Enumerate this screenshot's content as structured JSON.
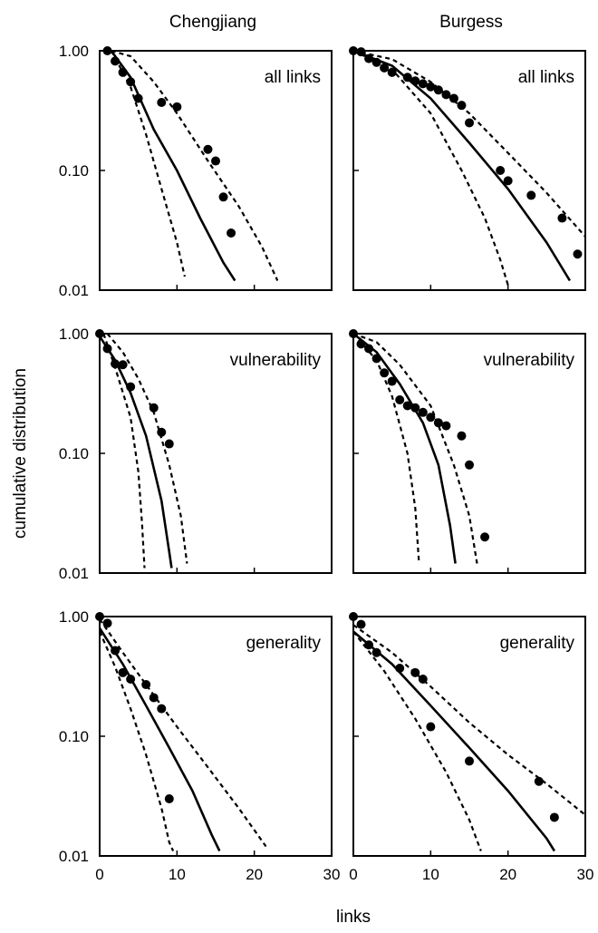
{
  "figure": {
    "column_titles": [
      "Chengjiang",
      "Burgess"
    ],
    "ylabel": "cumulative distribution",
    "xlabel": "links"
  },
  "chart_data": [
    {
      "type": "scatter",
      "label": "all links",
      "column": "Chengjiang",
      "xlim": [
        0,
        30
      ],
      "ylim": [
        0.01,
        1.0
      ],
      "yscale": "log",
      "yticks": [
        "1.00",
        "0.10",
        "0.01"
      ],
      "xticks": [],
      "points": [
        [
          1,
          1.0
        ],
        [
          2,
          0.82
        ],
        [
          3,
          0.66
        ],
        [
          4,
          0.55
        ],
        [
          5,
          0.4
        ],
        [
          8,
          0.37
        ],
        [
          10,
          0.34
        ],
        [
          14,
          0.15
        ],
        [
          15,
          0.12
        ],
        [
          16,
          0.06
        ],
        [
          17,
          0.03
        ]
      ],
      "model_line": [
        [
          1.5,
          1.0
        ],
        [
          4,
          0.6
        ],
        [
          7,
          0.22
        ],
        [
          10,
          0.1
        ],
        [
          13,
          0.04
        ],
        [
          16,
          0.017
        ],
        [
          17.5,
          0.012
        ]
      ],
      "lower_dashed": [
        [
          1.5,
          1.0
        ],
        [
          4,
          0.5
        ],
        [
          6,
          0.2
        ],
        [
          8,
          0.07
        ],
        [
          10,
          0.025
        ],
        [
          11,
          0.013
        ]
      ],
      "upper_dashed": [
        [
          1.5,
          1.0
        ],
        [
          4,
          0.9
        ],
        [
          7,
          0.55
        ],
        [
          10,
          0.3
        ],
        [
          14,
          0.12
        ],
        [
          18,
          0.05
        ],
        [
          21,
          0.023
        ],
        [
          23,
          0.012
        ]
      ]
    },
    {
      "type": "scatter",
      "label": "all links",
      "column": "Burgess",
      "xlim": [
        0,
        30
      ],
      "ylim": [
        0.01,
        1.0
      ],
      "yscale": "log",
      "yticks": [],
      "xticks": [],
      "points": [
        [
          0,
          1.0
        ],
        [
          1,
          0.98
        ],
        [
          2,
          0.86
        ],
        [
          3,
          0.8
        ],
        [
          4,
          0.72
        ],
        [
          5,
          0.66
        ],
        [
          7,
          0.6
        ],
        [
          8,
          0.56
        ],
        [
          9,
          0.53
        ],
        [
          10,
          0.5
        ],
        [
          11,
          0.47
        ],
        [
          12,
          0.43
        ],
        [
          13,
          0.4
        ],
        [
          14,
          0.35
        ],
        [
          15,
          0.25
        ],
        [
          19,
          0.1
        ],
        [
          20,
          0.082
        ],
        [
          23,
          0.062
        ],
        [
          27,
          0.04
        ],
        [
          29,
          0.02
        ]
      ],
      "model_line": [
        [
          0,
          1.0
        ],
        [
          5,
          0.75
        ],
        [
          10,
          0.4
        ],
        [
          15,
          0.17
        ],
        [
          20,
          0.07
        ],
        [
          25,
          0.025
        ],
        [
          28,
          0.012
        ]
      ],
      "lower_dashed": [
        [
          0,
          1.0
        ],
        [
          5,
          0.7
        ],
        [
          10,
          0.3
        ],
        [
          14,
          0.1
        ],
        [
          17,
          0.04
        ],
        [
          19,
          0.018
        ],
        [
          20,
          0.011
        ]
      ],
      "upper_dashed": [
        [
          0,
          1.0
        ],
        [
          5,
          0.85
        ],
        [
          10,
          0.55
        ],
        [
          15,
          0.3
        ],
        [
          20,
          0.14
        ],
        [
          25,
          0.065
        ],
        [
          30,
          0.028
        ]
      ]
    },
    {
      "type": "scatter",
      "label": "vulnerability",
      "column": "Chengjiang",
      "xlim": [
        0,
        30
      ],
      "ylim": [
        0.01,
        1.0
      ],
      "yscale": "log",
      "yticks": [
        "1.00",
        "0.10",
        "0.01"
      ],
      "xticks": [],
      "points": [
        [
          0,
          1.0
        ],
        [
          1,
          0.75
        ],
        [
          2,
          0.56
        ],
        [
          3,
          0.55
        ],
        [
          4,
          0.36
        ],
        [
          7,
          0.24
        ],
        [
          8,
          0.15
        ],
        [
          9,
          0.12
        ]
      ],
      "model_line": [
        [
          0,
          0.95
        ],
        [
          2,
          0.6
        ],
        [
          4,
          0.32
        ],
        [
          6,
          0.14
        ],
        [
          8,
          0.04
        ],
        [
          9,
          0.015
        ],
        [
          9.3,
          0.011
        ]
      ],
      "lower_dashed": [
        [
          0.5,
          1.0
        ],
        [
          2,
          0.52
        ],
        [
          4,
          0.2
        ],
        [
          5,
          0.07
        ],
        [
          5.5,
          0.025
        ],
        [
          5.8,
          0.011
        ]
      ],
      "upper_dashed": [
        [
          1,
          1.0
        ],
        [
          3,
          0.7
        ],
        [
          5,
          0.42
        ],
        [
          7,
          0.22
        ],
        [
          9,
          0.08
        ],
        [
          10.5,
          0.03
        ],
        [
          11.3,
          0.012
        ]
      ]
    },
    {
      "type": "scatter",
      "label": "vulnerability",
      "column": "Burgess",
      "xlim": [
        0,
        30
      ],
      "ylim": [
        0.01,
        1.0
      ],
      "yscale": "log",
      "yticks": [],
      "xticks": [],
      "points": [
        [
          0,
          1.0
        ],
        [
          1,
          0.82
        ],
        [
          2,
          0.75
        ],
        [
          3,
          0.62
        ],
        [
          4,
          0.47
        ],
        [
          5,
          0.4
        ],
        [
          6,
          0.28
        ],
        [
          7,
          0.25
        ],
        [
          8,
          0.24
        ],
        [
          9,
          0.22
        ],
        [
          10,
          0.2
        ],
        [
          11,
          0.18
        ],
        [
          12,
          0.17
        ],
        [
          14,
          0.14
        ],
        [
          15,
          0.08
        ],
        [
          17,
          0.02
        ]
      ],
      "model_line": [
        [
          0,
          1.0
        ],
        [
          3,
          0.7
        ],
        [
          6,
          0.38
        ],
        [
          9,
          0.18
        ],
        [
          11,
          0.08
        ],
        [
          12.5,
          0.025
        ],
        [
          13.2,
          0.012
        ]
      ],
      "lower_dashed": [
        [
          0,
          1.0
        ],
        [
          3,
          0.6
        ],
        [
          5,
          0.3
        ],
        [
          7,
          0.1
        ],
        [
          8,
          0.035
        ],
        [
          8.5,
          0.012
        ]
      ],
      "upper_dashed": [
        [
          0,
          1.0
        ],
        [
          3,
          0.85
        ],
        [
          6,
          0.55
        ],
        [
          10,
          0.25
        ],
        [
          13,
          0.08
        ],
        [
          15,
          0.03
        ],
        [
          16,
          0.012
        ]
      ]
    },
    {
      "type": "scatter",
      "label": "generality",
      "column": "Chengjiang",
      "xlim": [
        0,
        30
      ],
      "ylim": [
        0.01,
        1.0
      ],
      "yscale": "log",
      "yticks": [
        "1.00",
        "0.10",
        "0.01"
      ],
      "xticks": [
        "0",
        "10",
        "20",
        "30"
      ],
      "points": [
        [
          0,
          1.0
        ],
        [
          1,
          0.88
        ],
        [
          2,
          0.52
        ],
        [
          3,
          0.34
        ],
        [
          4,
          0.3
        ],
        [
          6,
          0.27
        ],
        [
          7,
          0.21
        ],
        [
          8,
          0.17
        ],
        [
          9,
          0.03
        ]
      ],
      "model_line": [
        [
          0,
          0.8
        ],
        [
          3,
          0.4
        ],
        [
          6,
          0.18
        ],
        [
          9,
          0.08
        ],
        [
          12,
          0.035
        ],
        [
          14.5,
          0.015
        ],
        [
          15.5,
          0.011
        ]
      ],
      "lower_dashed": [
        [
          0,
          0.75
        ],
        [
          2,
          0.38
        ],
        [
          4,
          0.17
        ],
        [
          6,
          0.07
        ],
        [
          8,
          0.025
        ],
        [
          9,
          0.013
        ],
        [
          9.5,
          0.011
        ]
      ],
      "upper_dashed": [
        [
          0,
          0.95
        ],
        [
          3,
          0.5
        ],
        [
          6,
          0.27
        ],
        [
          10,
          0.12
        ],
        [
          14,
          0.055
        ],
        [
          18,
          0.025
        ],
        [
          21.5,
          0.012
        ]
      ]
    },
    {
      "type": "scatter",
      "label": "generality",
      "column": "Burgess",
      "xlim": [
        0,
        30
      ],
      "ylim": [
        0.01,
        1.0
      ],
      "yscale": "log",
      "yticks": [],
      "xticks": [
        "0",
        "10",
        "20",
        "30"
      ],
      "points": [
        [
          0,
          1.0
        ],
        [
          1,
          0.86
        ],
        [
          2,
          0.58
        ],
        [
          3,
          0.5
        ],
        [
          6,
          0.37
        ],
        [
          8,
          0.34
        ],
        [
          9,
          0.3
        ],
        [
          10,
          0.12
        ],
        [
          15,
          0.062
        ],
        [
          24,
          0.042
        ],
        [
          26,
          0.021
        ]
      ],
      "model_line": [
        [
          0,
          0.75
        ],
        [
          5,
          0.4
        ],
        [
          10,
          0.18
        ],
        [
          15,
          0.08
        ],
        [
          20,
          0.035
        ],
        [
          25,
          0.014
        ],
        [
          26,
          0.011
        ]
      ],
      "lower_dashed": [
        [
          0,
          0.75
        ],
        [
          4,
          0.35
        ],
        [
          8,
          0.14
        ],
        [
          12,
          0.05
        ],
        [
          15,
          0.02
        ],
        [
          16.5,
          0.011
        ]
      ],
      "upper_dashed": [
        [
          0,
          0.85
        ],
        [
          5,
          0.5
        ],
        [
          10,
          0.26
        ],
        [
          15,
          0.13
        ],
        [
          20,
          0.07
        ],
        [
          25,
          0.04
        ],
        [
          30,
          0.022
        ]
      ]
    }
  ]
}
